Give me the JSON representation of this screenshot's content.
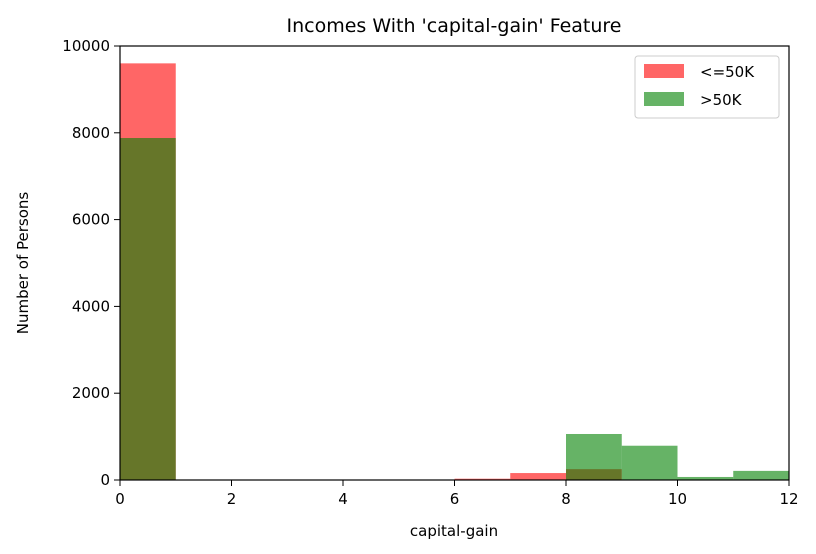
{
  "chart_data": {
    "type": "bar",
    "subtype": "overlaid-histogram",
    "title": "Incomes With 'capital-gain' Feature",
    "xlabel": "capital-gain",
    "ylabel": "Number of Persons",
    "xlim": [
      0,
      12
    ],
    "ylim": [
      0,
      10000
    ],
    "xticks": [
      "0",
      "2",
      "4",
      "6",
      "8",
      "10",
      "12"
    ],
    "yticks": [
      "0",
      "2000",
      "4000",
      "6000",
      "8000",
      "10000"
    ],
    "bins": [
      [
        0,
        1
      ],
      [
        1,
        2
      ],
      [
        2,
        3
      ],
      [
        3,
        4
      ],
      [
        4,
        5
      ],
      [
        5,
        6
      ],
      [
        6,
        7
      ],
      [
        7,
        8
      ],
      [
        8,
        9
      ],
      [
        9,
        10
      ],
      [
        10,
        11
      ],
      [
        11,
        12
      ]
    ],
    "series": [
      {
        "name": "<=50K",
        "color": "#ff0000",
        "alpha": 0.6,
        "values": [
          9600,
          0,
          0,
          0,
          0,
          0,
          30,
          160,
          250,
          0,
          0,
          0
        ]
      },
      {
        "name": ">50K",
        "color": "#008000",
        "alpha": 0.6,
        "values": [
          7880,
          0,
          0,
          0,
          0,
          0,
          0,
          0,
          1060,
          790,
          70,
          210
        ]
      }
    ],
    "legend": {
      "position": "top-right"
    },
    "grid": false
  }
}
